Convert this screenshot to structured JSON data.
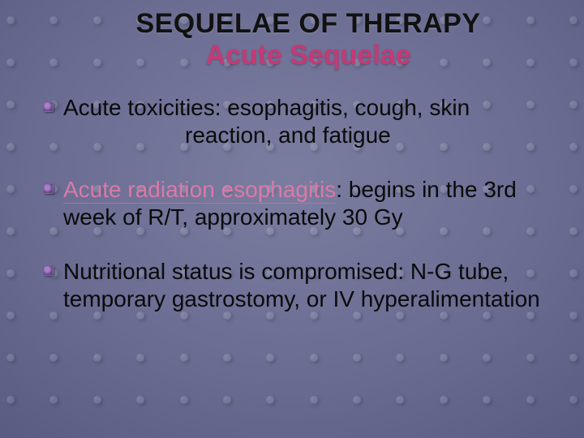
{
  "background": {
    "gradient_center": "#7b7da0",
    "gradient_mid": "#5a5c82",
    "gradient_edge": "#3e4062",
    "dot_rows": 10,
    "dots_per_row": 14,
    "dot_top_start": 20,
    "dot_row_spacing": 52,
    "dot_opacity": 0.55
  },
  "title": {
    "line1": "SEQUELAE OF THERAPY",
    "line2": "Acute Sequelae",
    "line1_color": "#111111",
    "line2_color": "#c33a76",
    "fontsize": 34
  },
  "bullets": {
    "fontsize": 28,
    "text_color": "#0a0a0a",
    "highlight_color": "#d97aa8",
    "marker_colors": {
      "light": "#aa80c8",
      "mid": "#6a4a8e",
      "dark": "#3a2a55"
    },
    "items": [
      {
        "segments": [
          {
            "text": "Acute toxicities: esophagitis, cough, skin",
            "highlight": false,
            "underline": false
          }
        ],
        "cont": "reaction, and fatigue"
      },
      {
        "segments": [
          {
            "text": "Acute radiation esophagitis",
            "highlight": true,
            "underline": true
          },
          {
            "text": ": begins in the 3rd week of R/T, approximately 30 Gy",
            "highlight": false,
            "underline": false
          }
        ]
      },
      {
        "segments": [
          {
            "text": "Nutritional status is compromised: N-G tube, temporary gastrostomy, or IV hyperalimentation",
            "highlight": false,
            "underline": false
          }
        ]
      }
    ]
  }
}
